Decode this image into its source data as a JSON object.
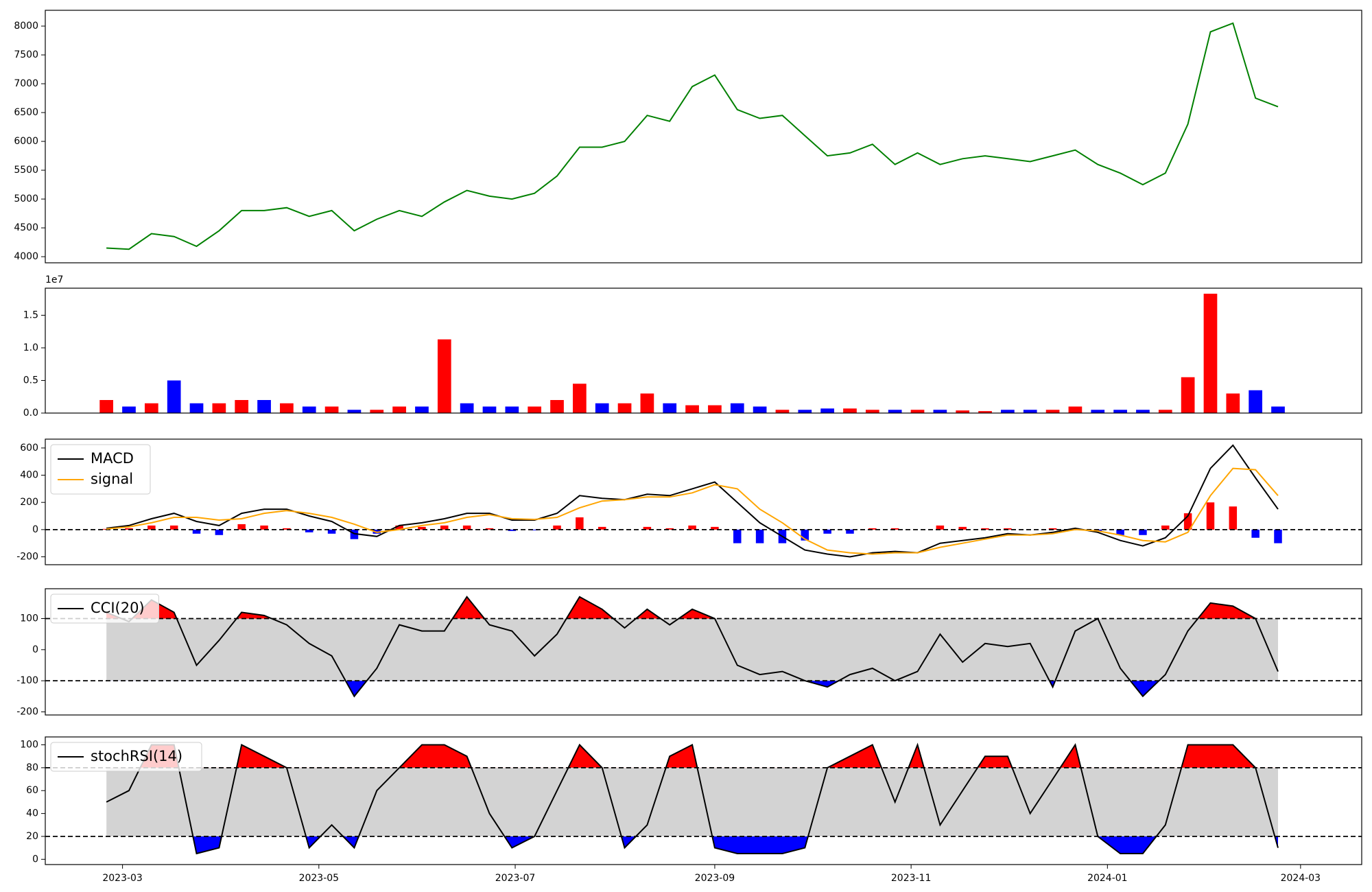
{
  "chart_data": [
    {
      "type": "line",
      "x": [
        "2023-02-24",
        "2023-03-03",
        "2023-03-10",
        "2023-03-17",
        "2023-03-24",
        "2023-03-31",
        "2023-04-07",
        "2023-04-14",
        "2023-04-21",
        "2023-04-28",
        "2023-05-05",
        "2023-05-12",
        "2023-05-19",
        "2023-05-26",
        "2023-06-02",
        "2023-06-09",
        "2023-06-16",
        "2023-06-23",
        "2023-06-30",
        "2023-07-07",
        "2023-07-14",
        "2023-07-21",
        "2023-07-28",
        "2023-08-04",
        "2023-08-11",
        "2023-08-18",
        "2023-08-25",
        "2023-09-01",
        "2023-09-08",
        "2023-09-15",
        "2023-09-22",
        "2023-09-29",
        "2023-10-06",
        "2023-10-13",
        "2023-10-20",
        "2023-10-27",
        "2023-11-03",
        "2023-11-10",
        "2023-11-17",
        "2023-11-24",
        "2023-12-01",
        "2023-12-08",
        "2023-12-15",
        "2023-12-22",
        "2023-12-29",
        "2024-01-05",
        "2024-01-12",
        "2024-01-19",
        "2024-01-26",
        "2024-02-02",
        "2024-02-09",
        "2024-02-16",
        "2024-02-23"
      ],
      "values": [
        4150,
        4130,
        4400,
        4350,
        4180,
        4450,
        4800,
        4800,
        4850,
        4700,
        4800,
        4450,
        4650,
        4800,
        4700,
        4950,
        5150,
        5050,
        5000,
        5100,
        5400,
        5900,
        5900,
        6000,
        6450,
        6350,
        6950,
        7150,
        6550,
        6400,
        6450,
        6100,
        5750,
        5800,
        5950,
        5600,
        5800,
        5600,
        5700,
        5750,
        5700,
        5650,
        5750,
        5850,
        5600,
        5450,
        5250,
        5450,
        6300,
        7900,
        8050,
        6750,
        6600
      ],
      "color": "#008000",
      "xlim": [
        "2023-02-05",
        "2024-03-20"
      ],
      "ylim": [
        3894,
        8274
      ],
      "yticks": [
        4000,
        4500,
        5000,
        5500,
        6000,
        6500,
        7000,
        7500,
        8000
      ]
    },
    {
      "type": "bar",
      "x": [
        "2023-02-24",
        "2023-03-03",
        "2023-03-10",
        "2023-03-17",
        "2023-03-24",
        "2023-03-31",
        "2023-04-07",
        "2023-04-14",
        "2023-04-21",
        "2023-04-28",
        "2023-05-05",
        "2023-05-12",
        "2023-05-19",
        "2023-05-26",
        "2023-06-02",
        "2023-06-09",
        "2023-06-16",
        "2023-06-23",
        "2023-06-30",
        "2023-07-07",
        "2023-07-14",
        "2023-07-21",
        "2023-07-28",
        "2023-08-04",
        "2023-08-11",
        "2023-08-18",
        "2023-08-25",
        "2023-09-01",
        "2023-09-08",
        "2023-09-15",
        "2023-09-22",
        "2023-09-29",
        "2023-10-06",
        "2023-10-13",
        "2023-10-20",
        "2023-10-27",
        "2023-11-03",
        "2023-11-10",
        "2023-11-17",
        "2023-11-24",
        "2023-12-01",
        "2023-12-08",
        "2023-12-15",
        "2023-12-22",
        "2023-12-29",
        "2024-01-05",
        "2024-01-12",
        "2024-01-19",
        "2024-01-26",
        "2024-02-02",
        "2024-02-09",
        "2024-02-16",
        "2024-02-23"
      ],
      "values": [
        0.2,
        0.1,
        0.15,
        0.5,
        0.15,
        0.15,
        0.2,
        0.2,
        0.15,
        0.1,
        0.1,
        0.05,
        0.05,
        0.1,
        0.1,
        1.13,
        0.15,
        0.1,
        0.1,
        0.1,
        0.2,
        0.45,
        0.15,
        0.15,
        0.3,
        0.15,
        0.12,
        0.12,
        0.15,
        0.1,
        0.05,
        0.05,
        0.07,
        0.07,
        0.05,
        0.05,
        0.05,
        0.05,
        0.04,
        0.03,
        0.05,
        0.05,
        0.05,
        0.1,
        0.05,
        0.05,
        0.05,
        0.05,
        0.55,
        1.83,
        0.3,
        0.35,
        0.1
      ],
      "colors": [
        "#ff0000",
        "#0000ff",
        "#ff0000",
        "#0000ff",
        "#0000ff",
        "#ff0000",
        "#ff0000",
        "#0000ff",
        "#ff0000",
        "#0000ff",
        "#ff0000",
        "#0000ff",
        "#ff0000",
        "#ff0000",
        "#0000ff",
        "#ff0000",
        "#0000ff",
        "#0000ff",
        "#0000ff",
        "#ff0000",
        "#ff0000",
        "#ff0000",
        "#0000ff",
        "#ff0000",
        "#ff0000",
        "#0000ff",
        "#ff0000",
        "#ff0000",
        "#0000ff",
        "#0000ff",
        "#ff0000",
        "#0000ff",
        "#0000ff",
        "#ff0000",
        "#ff0000",
        "#0000ff",
        "#ff0000",
        "#0000ff",
        "#ff0000",
        "#ff0000",
        "#0000ff",
        "#0000ff",
        "#ff0000",
        "#ff0000",
        "#0000ff",
        "#0000ff",
        "#0000ff",
        "#ff0000",
        "#ff0000",
        "#ff0000",
        "#ff0000",
        "#0000ff",
        "#0000ff"
      ],
      "offset_label": "1e7",
      "xlim": [
        "2023-02-05",
        "2024-03-20"
      ],
      "ylim": [
        0,
        1.915
      ],
      "yticks": [
        {
          "value": 0,
          "label": "0.0"
        },
        0.5,
        {
          "value": 1,
          "label": "1.0"
        },
        1.5
      ]
    },
    {
      "type": "macd",
      "x": [
        "2023-02-24",
        "2023-03-03",
        "2023-03-10",
        "2023-03-17",
        "2023-03-24",
        "2023-03-31",
        "2023-04-07",
        "2023-04-14",
        "2023-04-21",
        "2023-04-28",
        "2023-05-05",
        "2023-05-12",
        "2023-05-19",
        "2023-05-26",
        "2023-06-02",
        "2023-06-09",
        "2023-06-16",
        "2023-06-23",
        "2023-06-30",
        "2023-07-07",
        "2023-07-14",
        "2023-07-21",
        "2023-07-28",
        "2023-08-04",
        "2023-08-11",
        "2023-08-18",
        "2023-08-25",
        "2023-09-01",
        "2023-09-08",
        "2023-09-15",
        "2023-09-22",
        "2023-09-29",
        "2023-10-06",
        "2023-10-13",
        "2023-10-20",
        "2023-10-27",
        "2023-11-03",
        "2023-11-10",
        "2023-11-17",
        "2023-11-24",
        "2023-12-01",
        "2023-12-08",
        "2023-12-15",
        "2023-12-22",
        "2023-12-29",
        "2024-01-05",
        "2024-01-12",
        "2024-01-19",
        "2024-01-26",
        "2024-02-02",
        "2024-02-09",
        "2024-02-16",
        "2024-02-23"
      ],
      "series": [
        {
          "name": "MACD",
          "color": "#000000",
          "values": [
            10,
            30,
            80,
            120,
            60,
            30,
            120,
            150,
            150,
            100,
            60,
            -30,
            -50,
            30,
            50,
            80,
            120,
            120,
            70,
            70,
            120,
            250,
            230,
            220,
            260,
            250,
            300,
            350,
            200,
            50,
            -50,
            -150,
            -180,
            -200,
            -170,
            -160,
            -170,
            -100,
            -80,
            -60,
            -30,
            -40,
            -20,
            10,
            -20,
            -80,
            -120,
            -60,
            100,
            450,
            620,
            380,
            150
          ]
        },
        {
          "name": "signal",
          "color": "#ffa500",
          "values": [
            5,
            20,
            50,
            90,
            90,
            70,
            80,
            120,
            140,
            120,
            90,
            40,
            -20,
            0,
            30,
            50,
            90,
            110,
            80,
            75,
            90,
            160,
            210,
            220,
            240,
            240,
            270,
            330,
            300,
            150,
            50,
            -70,
            -150,
            -170,
            -180,
            -170,
            -170,
            -130,
            -100,
            -70,
            -40,
            -40,
            -30,
            0,
            -10,
            -40,
            -80,
            -90,
            -20,
            250,
            450,
            440,
            250
          ]
        }
      ],
      "histogram": {
        "values": [
          5,
          10,
          30,
          30,
          -30,
          -40,
          40,
          30,
          10,
          -20,
          -30,
          -70,
          -30,
          30,
          20,
          30,
          30,
          10,
          -10,
          -5,
          30,
          90,
          20,
          0,
          20,
          10,
          30,
          20,
          -100,
          -100,
          -100,
          -80,
          -30,
          -30,
          10,
          10,
          0,
          30,
          20,
          10,
          10,
          0,
          10,
          10,
          -10,
          -40,
          -40,
          30,
          120,
          200,
          170,
          -60,
          -100
        ],
        "pos_color": "#ff0000",
        "neg_color": "#0000ff"
      },
      "reference_lines": [
        0
      ],
      "legend": "upper left",
      "xlim": [
        "2023-02-05",
        "2024-03-20"
      ],
      "ylim": [
        -258,
        665
      ],
      "yticks": [
        -200,
        0,
        200,
        400,
        600
      ]
    },
    {
      "type": "oscillator",
      "x": [
        "2023-02-24",
        "2023-03-03",
        "2023-03-10",
        "2023-03-17",
        "2023-03-24",
        "2023-03-31",
        "2023-04-07",
        "2023-04-14",
        "2023-04-21",
        "2023-04-28",
        "2023-05-05",
        "2023-05-12",
        "2023-05-19",
        "2023-05-26",
        "2023-06-02",
        "2023-06-09",
        "2023-06-16",
        "2023-06-23",
        "2023-06-30",
        "2023-07-07",
        "2023-07-14",
        "2023-07-21",
        "2023-07-28",
        "2023-08-04",
        "2023-08-11",
        "2023-08-18",
        "2023-08-25",
        "2023-09-01",
        "2023-09-08",
        "2023-09-15",
        "2023-09-22",
        "2023-09-29",
        "2023-10-06",
        "2023-10-13",
        "2023-10-20",
        "2023-10-27",
        "2023-11-03",
        "2023-11-10",
        "2023-11-17",
        "2023-11-24",
        "2023-12-01",
        "2023-12-08",
        "2023-12-15",
        "2023-12-22",
        "2023-12-29",
        "2024-01-05",
        "2024-01-12",
        "2024-01-19",
        "2024-01-26",
        "2024-02-02",
        "2024-02-09",
        "2024-02-16",
        "2024-02-23"
      ],
      "series": [
        {
          "name": "CCI(20)",
          "color": "#000000",
          "values": [
            120,
            90,
            160,
            120,
            -50,
            30,
            120,
            110,
            80,
            20,
            -20,
            -150,
            -60,
            80,
            60,
            60,
            170,
            80,
            60,
            -20,
            50,
            170,
            130,
            70,
            130,
            80,
            130,
            100,
            -50,
            -80,
            -70,
            -100,
            -120,
            -80,
            -60,
            -100,
            -70,
            50,
            -40,
            20,
            10,
            20,
            -120,
            60,
            100,
            -60,
            -150,
            -80,
            60,
            150,
            140,
            100,
            -70
          ]
        }
      ],
      "bands": [
        -100,
        100
      ],
      "band_color": "#d3d3d3",
      "over_color": "#ff0000",
      "under_color": "#0000ff",
      "legend": "upper left",
      "xlim": [
        "2023-02-05",
        "2024-03-20"
      ],
      "ylim": [
        -210,
        196
      ],
      "yticks": [
        -200,
        -100,
        0,
        100
      ]
    },
    {
      "type": "oscillator",
      "x": [
        "2023-02-24",
        "2023-03-03",
        "2023-03-10",
        "2023-03-17",
        "2023-03-24",
        "2023-03-31",
        "2023-04-07",
        "2023-04-14",
        "2023-04-21",
        "2023-04-28",
        "2023-05-05",
        "2023-05-12",
        "2023-05-19",
        "2023-05-26",
        "2023-06-02",
        "2023-06-09",
        "2023-06-16",
        "2023-06-23",
        "2023-06-30",
        "2023-07-07",
        "2023-07-14",
        "2023-07-21",
        "2023-07-28",
        "2023-08-04",
        "2023-08-11",
        "2023-08-18",
        "2023-08-25",
        "2023-09-01",
        "2023-09-08",
        "2023-09-15",
        "2023-09-22",
        "2023-09-29",
        "2023-10-06",
        "2023-10-13",
        "2023-10-20",
        "2023-10-27",
        "2023-11-03",
        "2023-11-10",
        "2023-11-17",
        "2023-11-24",
        "2023-12-01",
        "2023-12-08",
        "2023-12-15",
        "2023-12-22",
        "2023-12-29",
        "2024-01-05",
        "2024-01-12",
        "2024-01-19",
        "2024-01-26",
        "2024-02-02",
        "2024-02-09",
        "2024-02-16",
        "2024-02-23"
      ],
      "series": [
        {
          "name": "stochRSI(14)",
          "color": "#000000",
          "values": [
            50,
            60,
            100,
            100,
            5,
            10,
            100,
            90,
            80,
            10,
            30,
            10,
            60,
            80,
            100,
            100,
            90,
            40,
            10,
            20,
            60,
            100,
            80,
            10,
            30,
            90,
            100,
            10,
            5,
            5,
            5,
            10,
            80,
            90,
            100,
            50,
            100,
            30,
            60,
            90,
            90,
            40,
            70,
            100,
            20,
            5,
            5,
            30,
            100,
            100,
            100,
            80,
            10
          ]
        }
      ],
      "bands": [
        20,
        80
      ],
      "band_color": "#d3d3d3",
      "over_color": "#ff0000",
      "under_color": "#0000ff",
      "legend": "upper left",
      "xlim": [
        "2023-02-05",
        "2024-03-20"
      ],
      "ylim": [
        -4.6,
        106.9
      ],
      "yticks": [
        0,
        20,
        40,
        60,
        80,
        100
      ],
      "xticks": [
        {
          "value": "2023-03-01",
          "label": "2023-03"
        },
        {
          "value": "2023-05-01",
          "label": "2023-05"
        },
        {
          "value": "2023-07-01",
          "label": "2023-07"
        },
        {
          "value": "2023-09-01",
          "label": "2023-09"
        },
        {
          "value": "2023-11-01",
          "label": "2023-11"
        },
        {
          "value": "2024-01-01",
          "label": "2024-01"
        },
        {
          "value": "2024-03-01",
          "label": "2024-03"
        }
      ]
    }
  ]
}
